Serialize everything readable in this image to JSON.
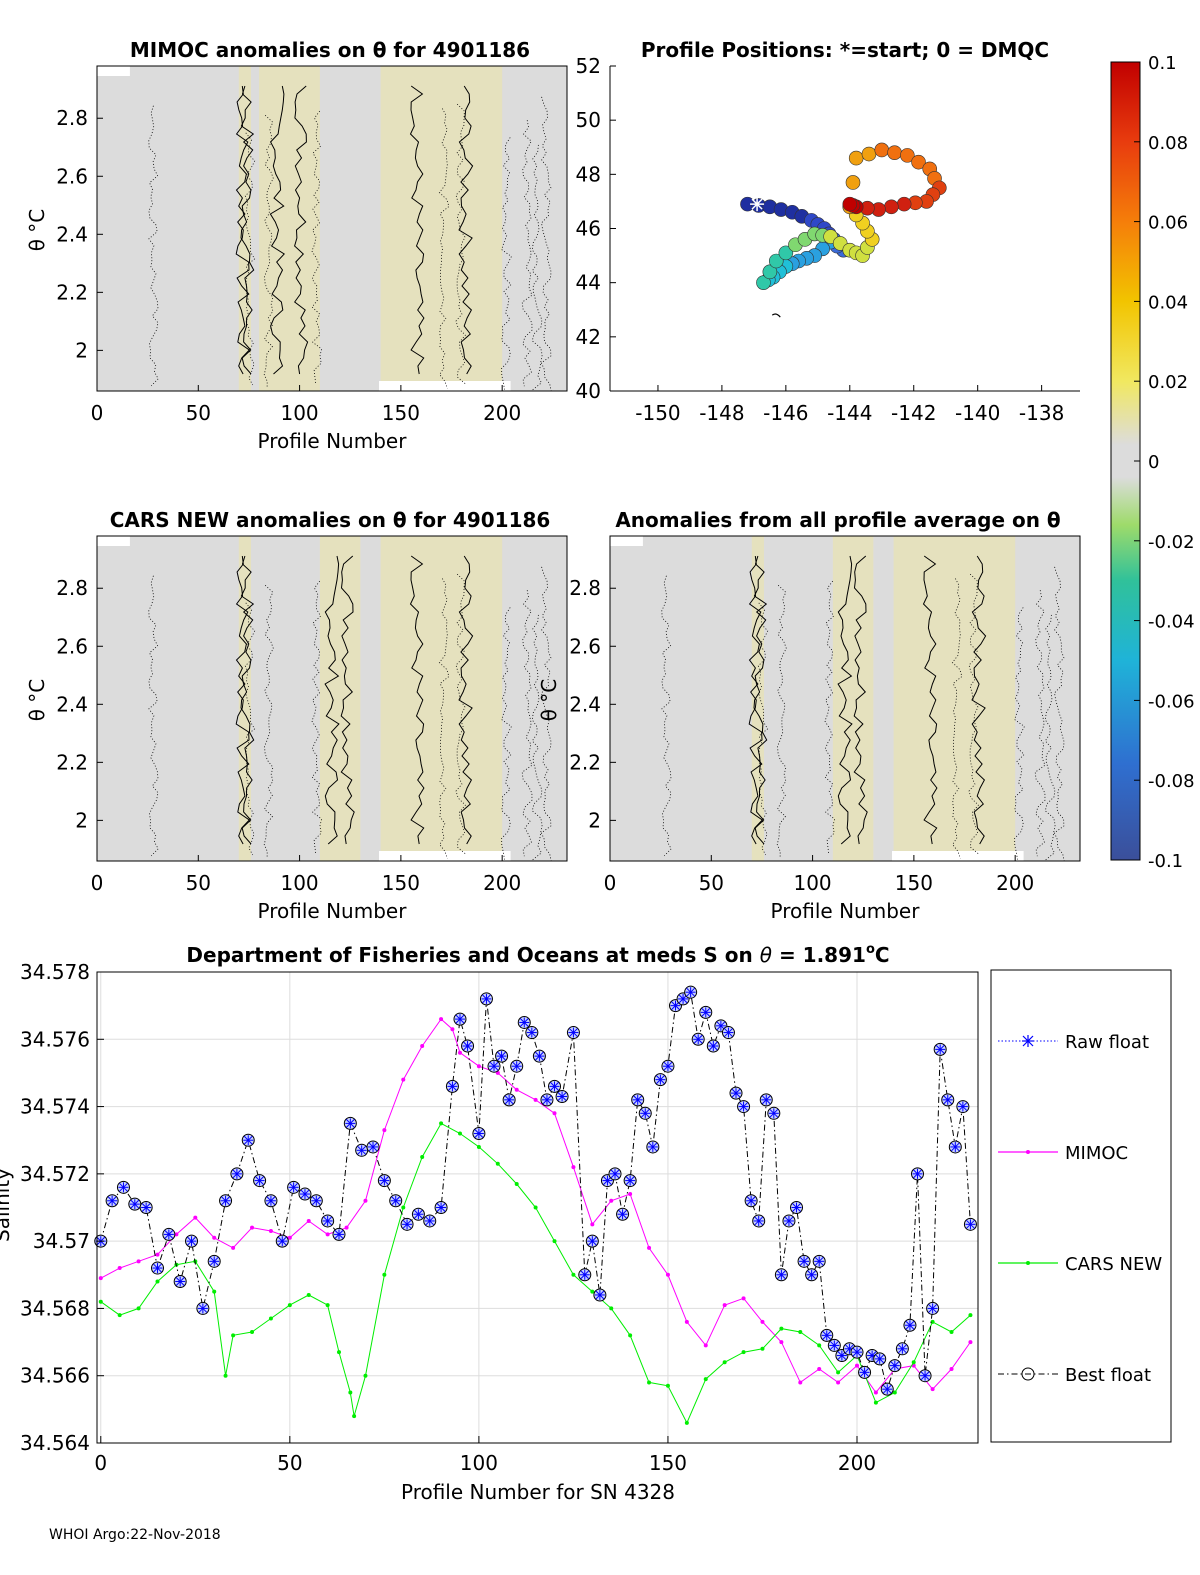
{
  "footer": "WHOI Argo:22-Nov-2018",
  "colors": {
    "axis": "#000000",
    "grid": "#dddddd",
    "field": "#dcdcdc",
    "raw": "#0000ff",
    "mimoc": "#ff00ff",
    "cars": "#00ee00",
    "best": "#000000"
  },
  "chart_data": [
    {
      "type": "heatmap",
      "title": "MIMOC anomalies on θ  for 4901186",
      "xlabel": "Profile Number",
      "ylabel": "θ °C",
      "xlim": [
        0,
        232
      ],
      "ylim": [
        1.86,
        2.98
      ],
      "xticks": [
        0,
        50,
        100,
        150,
        200
      ],
      "yticks": [
        2,
        2.2,
        2.4,
        2.6,
        2.8
      ],
      "warm_bands": [
        [
          70,
          76
        ],
        [
          80,
          110
        ],
        [
          140,
          200
        ]
      ]
    },
    {
      "type": "scatter",
      "title": "Profile Positions: *=start; 0 = DMQC",
      "xlim": [
        -151.5,
        -136.8
      ],
      "ylim": [
        40,
        52
      ],
      "xticks": [
        -150,
        -148,
        -146,
        -144,
        -142,
        -140,
        -138
      ],
      "yticks": [
        40,
        42,
        44,
        46,
        48,
        50,
        52
      ],
      "track_lon": [
        -147.2,
        -146.5,
        -145.8,
        -145.2,
        -144.8,
        -144.5,
        -144.2,
        -144.6,
        -145.1,
        -145.6,
        -146.0,
        -146.4,
        -146.7,
        -146.3,
        -145.7,
        -145.1,
        -144.6,
        -144.0,
        -143.6,
        -143.3,
        -143.6,
        -144.0,
        -143.8,
        -143.0,
        -142.2,
        -141.5,
        -141.2,
        -141.6,
        -142.3,
        -143.1,
        -143.8,
        -144.0
      ],
      "track_lat": [
        46.9,
        46.8,
        46.6,
        46.3,
        46.0,
        45.6,
        45.2,
        45.5,
        45.0,
        44.8,
        44.6,
        44.2,
        44.0,
        44.8,
        45.4,
        45.8,
        45.7,
        45.2,
        45.0,
        45.6,
        46.2,
        46.8,
        48.6,
        48.9,
        48.7,
        48.2,
        47.5,
        47.0,
        46.9,
        46.7,
        46.8,
        46.9
      ],
      "start": [
        -146.9,
        46.9
      ],
      "dmqc": [
        -146.3,
        42.8
      ]
    },
    {
      "type": "heatmap",
      "title": "CARS NEW anomalies on θ for 4901186",
      "xlabel": "Profile Number",
      "ylabel": "θ °C",
      "xlim": [
        0,
        232
      ],
      "ylim": [
        1.86,
        2.98
      ],
      "xticks": [
        0,
        50,
        100,
        150,
        200
      ],
      "yticks": [
        2,
        2.2,
        2.4,
        2.6,
        2.8
      ],
      "warm_bands": [
        [
          70,
          76
        ],
        [
          110,
          130
        ],
        [
          140,
          200
        ]
      ]
    },
    {
      "type": "heatmap",
      "title": "Anomalies from all profile average on θ",
      "xlabel": "Profile Number",
      "ylabel": "θ °C",
      "xlim": [
        0,
        232
      ],
      "ylim": [
        1.86,
        2.98
      ],
      "xticks": [
        0,
        50,
        100,
        150,
        200
      ],
      "yticks": [
        2,
        2.2,
        2.4,
        2.6,
        2.8
      ],
      "warm_bands": [
        [
          70,
          76
        ],
        [
          110,
          130
        ],
        [
          140,
          200
        ]
      ]
    },
    {
      "type": "colorbar",
      "range": [
        -0.1,
        0.1
      ],
      "ticks": [
        "0.1",
        "0.08",
        "0.06",
        "0.04",
        "0.02",
        "0",
        "-0.02",
        "-0.04",
        "-0.06",
        "-0.08",
        "-0.1"
      ]
    },
    {
      "type": "line",
      "title": "Department of Fisheries and Oceans at meds S on θ = 1.891°C",
      "title_main": "Department of Fisheries and Oceans at meds S on ",
      "title_theta": "θ",
      "title_eq": " = 1.891",
      "title_deg": "o",
      "title_unit": "C",
      "xlabel": "Profile Number for SN 4328",
      "ylabel": "Salinity",
      "xlim": [
        -1,
        232
      ],
      "ylim": [
        34.564,
        34.578
      ],
      "xticks": [
        0,
        50,
        100,
        150,
        200
      ],
      "yticks": [
        34.564,
        34.566,
        34.568,
        34.57,
        34.572,
        34.574,
        34.576,
        34.578
      ],
      "legend": [
        "Raw float",
        "MIMOC",
        "CARS NEW",
        "Best float"
      ],
      "legend_position": "outside-right",
      "series_anchor": {
        "mimoc_x": [
          0,
          5,
          10,
          15,
          20,
          25,
          30,
          35,
          40,
          45,
          50,
          55,
          60,
          65,
          70,
          75,
          80,
          85,
          90,
          93,
          95,
          100,
          105,
          110,
          115,
          120,
          125,
          130,
          135,
          140,
          145,
          150,
          155,
          160,
          165,
          170,
          175,
          180,
          185,
          190,
          195,
          200,
          205,
          210,
          215,
          220,
          225,
          230
        ],
        "mimoc_y": [
          34.5689,
          34.5692,
          34.5694,
          34.5696,
          34.5702,
          34.5707,
          34.5701,
          34.5698,
          34.5704,
          34.5703,
          34.5701,
          34.5706,
          34.5702,
          34.5704,
          34.5712,
          34.5733,
          34.5748,
          34.5758,
          34.5766,
          34.5763,
          34.5756,
          34.5752,
          34.575,
          34.5745,
          34.5742,
          34.5738,
          34.5722,
          34.5705,
          34.5712,
          34.5714,
          34.5698,
          34.569,
          34.5676,
          34.5669,
          34.5681,
          34.5683,
          34.5676,
          34.567,
          34.5658,
          34.5662,
          34.5658,
          34.5663,
          34.5655,
          34.5662,
          34.5663,
          34.5656,
          34.5662,
          34.567
        ],
        "cars_x": [
          0,
          5,
          10,
          15,
          20,
          25,
          30,
          33,
          35,
          40,
          45,
          50,
          55,
          60,
          63,
          66,
          67,
          70,
          75,
          80,
          85,
          90,
          95,
          100,
          105,
          110,
          115,
          120,
          125,
          130,
          135,
          140,
          145,
          150,
          155,
          160,
          165,
          170,
          175,
          180,
          185,
          190,
          195,
          200,
          205,
          210,
          215,
          220,
          225,
          230
        ],
        "cars_y": [
          34.5682,
          34.5678,
          34.568,
          34.5688,
          34.5693,
          34.5694,
          34.5685,
          34.566,
          34.5672,
          34.5673,
          34.5677,
          34.5681,
          34.5684,
          34.5681,
          34.5667,
          34.5655,
          34.5648,
          34.566,
          34.569,
          34.571,
          34.5725,
          34.5735,
          34.5732,
          34.5728,
          34.5723,
          34.5717,
          34.571,
          34.57,
          34.569,
          34.5685,
          34.568,
          34.5672,
          34.5658,
          34.5657,
          34.5646,
          34.5659,
          34.5664,
          34.5667,
          34.5668,
          34.5674,
          34.5673,
          34.5669,
          34.5661,
          34.5666,
          34.5652,
          34.5655,
          34.5664,
          34.5676,
          34.5673,
          34.5678
        ],
        "best_x": [
          0,
          3,
          6,
          9,
          12,
          15,
          18,
          21,
          24,
          27,
          30,
          33,
          36,
          39,
          42,
          45,
          48,
          51,
          54,
          57,
          60,
          63,
          66,
          69,
          72,
          75,
          78,
          81,
          84,
          87,
          90,
          93,
          95,
          97,
          100,
          102,
          104,
          106,
          108,
          110,
          112,
          114,
          116,
          118,
          120,
          122,
          125,
          128,
          130,
          132,
          134,
          136,
          138,
          140,
          142,
          144,
          146,
          148,
          150,
          152,
          154,
          156,
          158,
          160,
          162,
          164,
          166,
          168,
          170,
          172,
          174,
          176,
          178,
          180,
          182,
          184,
          186,
          188,
          190,
          192,
          194,
          196,
          198,
          200,
          202,
          204,
          206,
          208,
          210,
          212,
          214,
          216,
          218,
          220,
          222,
          224,
          226,
          228,
          230
        ],
        "best_y": [
          34.57,
          34.5712,
          34.5716,
          34.5711,
          34.571,
          34.5692,
          34.5702,
          34.5688,
          34.57,
          34.568,
          34.5694,
          34.5712,
          34.572,
          34.573,
          34.5718,
          34.5712,
          34.57,
          34.5716,
          34.5714,
          34.5712,
          34.5706,
          34.5702,
          34.5735,
          34.5727,
          34.5728,
          34.5718,
          34.5712,
          34.5705,
          34.5708,
          34.5706,
          34.571,
          34.5746,
          34.5766,
          34.5758,
          34.5732,
          34.5772,
          34.5752,
          34.5755,
          34.5742,
          34.5752,
          34.5765,
          34.5762,
          34.5755,
          34.5742,
          34.5746,
          34.5743,
          34.5762,
          34.569,
          34.57,
          34.5684,
          34.5718,
          34.572,
          34.5708,
          34.5718,
          34.5742,
          34.5738,
          34.5728,
          34.5748,
          34.5752,
          34.577,
          34.5772,
          34.5774,
          34.576,
          34.5768,
          34.5758,
          34.5764,
          34.5762,
          34.5744,
          34.574,
          34.5712,
          34.5706,
          34.5742,
          34.5738,
          34.569,
          34.5706,
          34.571,
          34.5694,
          34.569,
          34.5694,
          34.5672,
          34.5669,
          34.5666,
          34.5668,
          34.5667,
          34.5661,
          34.5666,
          34.5665,
          34.5656,
          34.5663,
          34.5668,
          34.5675,
          34.572,
          34.566,
          34.568,
          34.5757,
          34.5742,
          34.5728,
          34.574,
          34.5705
        ]
      }
    }
  ]
}
